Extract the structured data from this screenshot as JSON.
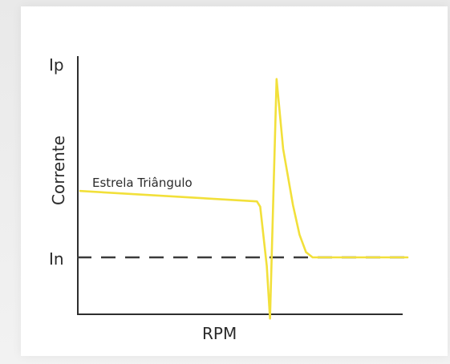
{
  "colors": {
    "curve": "#f2e03a",
    "axis": "#2e2e2e",
    "dashed": "#3a3a3a",
    "background": "#ffffff"
  },
  "chart_data": {
    "type": "line",
    "xlabel": "RPM",
    "ylabel": "Corrente",
    "y_ticks": [
      {
        "label": "Ip",
        "value": 1.0
      },
      {
        "label": "In",
        "value": 0.0
      }
    ],
    "reference_line": {
      "label": "In",
      "y": 0.0,
      "style": "dashed"
    },
    "series": [
      {
        "name": "Estrela Triângulo",
        "points": [
          [
            0.0,
            0.38
          ],
          [
            0.54,
            0.32
          ],
          [
            0.55,
            0.29
          ],
          [
            0.57,
            -0.05
          ],
          [
            0.58,
            -0.35
          ],
          [
            0.6,
            1.02
          ],
          [
            0.62,
            0.62
          ],
          [
            0.65,
            0.3
          ],
          [
            0.67,
            0.13
          ],
          [
            0.69,
            0.03
          ],
          [
            0.71,
            0.0
          ],
          [
            1.0,
            0.0
          ]
        ]
      }
    ],
    "xlim": [
      0,
      1
    ],
    "ylim": [
      -0.4,
      1.0
    ],
    "grid": false,
    "legend": "none"
  }
}
